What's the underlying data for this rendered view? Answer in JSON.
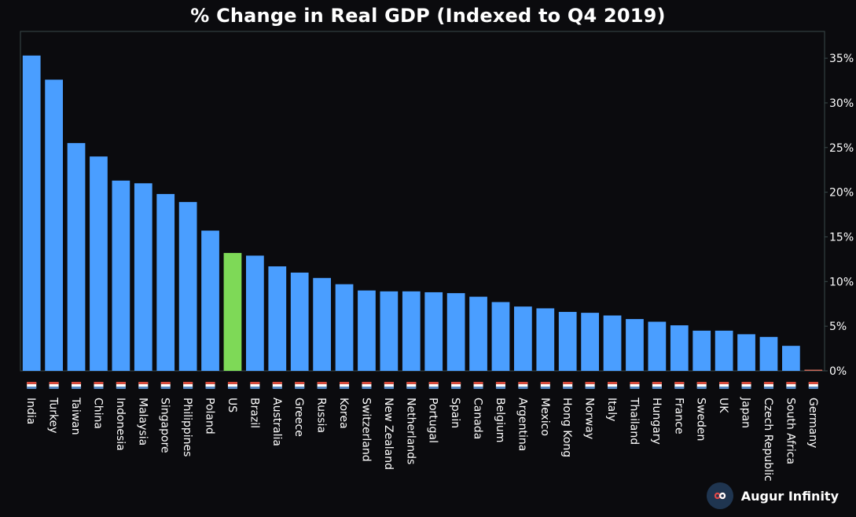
{
  "chart_data": {
    "type": "bar",
    "title": "% Change in Real GDP (Indexed to Q4 2019)",
    "categories": [
      "India",
      "Turkey",
      "Taiwan",
      "China",
      "Indonesia",
      "Malaysia",
      "Singapore",
      "Philippines",
      "Poland",
      "US",
      "Brazil",
      "Australia",
      "Greece",
      "Russia",
      "Korea",
      "Switzerland",
      "New Zealand",
      "Netherlands",
      "Portugal",
      "Spain",
      "Canada",
      "Belgium",
      "Argentina",
      "Mexico",
      "Hong Kong",
      "Norway",
      "Italy",
      "Thailand",
      "Hungary",
      "France",
      "Sweden",
      "UK",
      "Japan",
      "Czech Republic",
      "South Africa",
      "Germany"
    ],
    "values": [
      35.3,
      32.6,
      25.5,
      24.0,
      21.3,
      21.0,
      19.8,
      18.9,
      15.7,
      13.2,
      12.9,
      11.7,
      11.0,
      10.4,
      9.7,
      9.0,
      8.9,
      8.9,
      8.8,
      8.7,
      8.3,
      7.7,
      7.2,
      7.0,
      6.6,
      6.5,
      6.2,
      5.8,
      5.5,
      5.1,
      4.5,
      4.5,
      4.1,
      3.8,
      2.8,
      0.1
    ],
    "highlight_category": "US",
    "yticks": [
      "0%",
      "5%",
      "10%",
      "15%",
      "20%",
      "25%",
      "30%",
      "35%"
    ],
    "ylim": [
      0,
      38
    ],
    "y_axis_side": "right",
    "grid": false,
    "colors": {
      "default_bar": "#4a9eff",
      "highlight_bar": "#7ed957",
      "negative_bar": "#c96a5a",
      "background": "#0b0b0e",
      "axis": "#3a4a4a",
      "text": "#ffffff"
    },
    "flag_icons": [
      "india-flag-icon",
      "turkey-flag-icon",
      "taiwan-flag-icon",
      "china-flag-icon",
      "indonesia-flag-icon",
      "malaysia-flag-icon",
      "singapore-flag-icon",
      "philippines-flag-icon",
      "poland-flag-icon",
      "us-flag-icon",
      "brazil-flag-icon",
      "australia-flag-icon",
      "greece-flag-icon",
      "russia-flag-icon",
      "korea-flag-icon",
      "switzerland-flag-icon",
      "new-zealand-flag-icon",
      "netherlands-flag-icon",
      "portugal-flag-icon",
      "spain-flag-icon",
      "canada-flag-icon",
      "belgium-flag-icon",
      "argentina-flag-icon",
      "mexico-flag-icon",
      "hong-kong-flag-icon",
      "norway-flag-icon",
      "italy-flag-icon",
      "thailand-flag-icon",
      "hungary-flag-icon",
      "france-flag-icon",
      "sweden-flag-icon",
      "uk-flag-icon",
      "japan-flag-icon",
      "czech-republic-flag-icon",
      "south-africa-flag-icon",
      "germany-flag-icon"
    ]
  },
  "branding": {
    "name": "Augur Infinity",
    "logo_icon": "infinity-logo-icon"
  }
}
